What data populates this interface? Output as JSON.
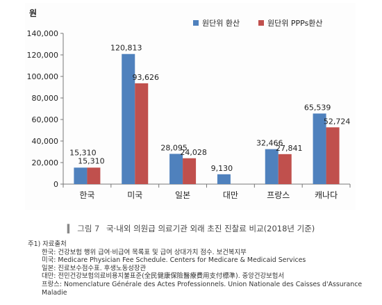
{
  "chart_data": {
    "type": "bar",
    "unit_label": "원",
    "categories": [
      "한국",
      "미국",
      "일본",
      "대만",
      "프랑스",
      "캐나다"
    ],
    "series": [
      {
        "name": "원단위 환산",
        "color": "#4f81bd",
        "values": [
          15310,
          120813,
          28095,
          9130,
          32466,
          65539
        ]
      },
      {
        "name": "원단위 PPPs환산",
        "color": "#c0504d",
        "values": [
          15310,
          93626,
          24028,
          null,
          27841,
          52724
        ]
      }
    ],
    "data_labels": [
      [
        "15,310",
        "120,813",
        "28,095",
        "9,130",
        "32,466",
        "65,539"
      ],
      [
        "15,310",
        "93,626",
        "24,028",
        "",
        "27,841",
        "52,724"
      ]
    ],
    "y_ticks": [
      "0",
      "20,000",
      "40,000",
      "60,000",
      "80,000",
      "100,000",
      "120,000",
      "140,000"
    ],
    "ylim": [
      0,
      140000
    ],
    "legend_position": "top-right",
    "grid": false
  },
  "caption": {
    "marker": "▍",
    "figure_number": "그림 7",
    "title": "국·내외 의원급 의료기관 외래 초진 진찰료 비교(2018년 기준)"
  },
  "notes": {
    "header": "주1) 자료출처",
    "lines": [
      "한국: 건강보험 행위 급여·비급여 목록표 및 급여 상대가치 점수. 보건복지부",
      "미국: Medicare Physician Fee Schedule. Centers for Medicare & Medicaid Services",
      "일본: 진료보수점수표. 후생노동성장관",
      "대만: 전민건강보험의료비용지불표준(全民健康保險醫療費用支付標準). 중앙건강보험서",
      "프랑스: Nomenclature Générale des Actes Professionnels. Union Nationale des Caisses d'Assurance Maladie"
    ]
  }
}
